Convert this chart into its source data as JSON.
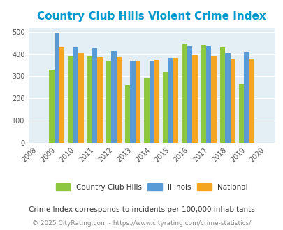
{
  "title": "Country Club Hills Violent Crime Index",
  "bar_years": [
    2009,
    2010,
    2011,
    2012,
    2013,
    2014,
    2015,
    2016,
    2017,
    2018,
    2019
  ],
  "xtick_years": [
    2008,
    2009,
    2010,
    2011,
    2012,
    2013,
    2014,
    2015,
    2016,
    2017,
    2018,
    2019,
    2020
  ],
  "cchill": [
    330,
    390,
    388,
    372,
    260,
    293,
    318,
    445,
    440,
    430,
    265
  ],
  "illinois": [
    498,
    435,
    428,
    415,
    372,
    370,
    383,
    438,
    438,
    405,
    408
  ],
  "national": [
    430,
    405,
    387,
    387,
    367,
    373,
    383,
    395,
    394,
    379,
    379
  ],
  "color_cchill": "#8dc63f",
  "color_illinois": "#5b9bd5",
  "color_national": "#f4a623",
  "color_bg_plot": "#e3eff5",
  "color_title": "#0099cc",
  "subtitle": "Crime Index corresponds to incidents per 100,000 inhabitants",
  "footnote": "© 2025 CityRating.com - https://www.cityrating.com/crime-statistics/",
  "legend_labels": [
    "Country Club Hills",
    "Illinois",
    "National"
  ],
  "ylim": [
    0,
    520
  ],
  "yticks": [
    0,
    100,
    200,
    300,
    400,
    500
  ],
  "bar_width": 0.27
}
